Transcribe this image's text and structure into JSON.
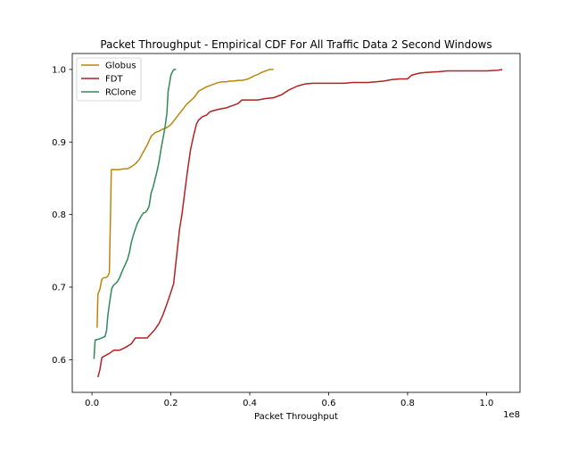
{
  "chart_data": {
    "type": "line",
    "title": "Packet Throughput - Empirical CDF For All Traffic Data 2 Second Windows",
    "xlabel": "Packet Throughput",
    "ylabel": "",
    "x_scale_label": "1e8",
    "xlim": [
      -0.05,
      1.085
    ],
    "ylim": [
      0.555,
      1.022
    ],
    "x_ticks": [
      {
        "value": 0.0,
        "label": "0.0"
      },
      {
        "value": 0.2,
        "label": "0.2"
      },
      {
        "value": 0.4,
        "label": "0.4"
      },
      {
        "value": 0.6,
        "label": "0.6"
      },
      {
        "value": 0.8,
        "label": "0.8"
      },
      {
        "value": 1.0,
        "label": "1.0"
      }
    ],
    "y_ticks": [
      {
        "value": 0.6,
        "label": "0.6"
      },
      {
        "value": 0.7,
        "label": "0.7"
      },
      {
        "value": 0.8,
        "label": "0.8"
      },
      {
        "value": 0.9,
        "label": "0.9"
      },
      {
        "value": 1.0,
        "label": "1.0"
      }
    ],
    "grid": false,
    "legend_position": "top-left",
    "series": [
      {
        "name": "Globus",
        "color": "#b8860b",
        "points": [
          [
            0.013,
            0.644
          ],
          [
            0.015,
            0.69
          ],
          [
            0.02,
            0.697
          ],
          [
            0.025,
            0.711
          ],
          [
            0.03,
            0.713
          ],
          [
            0.035,
            0.713
          ],
          [
            0.04,
            0.715
          ],
          [
            0.044,
            0.72
          ],
          [
            0.047,
            0.8
          ],
          [
            0.049,
            0.862
          ],
          [
            0.06,
            0.862
          ],
          [
            0.07,
            0.862
          ],
          [
            0.08,
            0.863
          ],
          [
            0.09,
            0.863
          ],
          [
            0.1,
            0.866
          ],
          [
            0.11,
            0.87
          ],
          [
            0.12,
            0.876
          ],
          [
            0.13,
            0.886
          ],
          [
            0.14,
            0.896
          ],
          [
            0.15,
            0.908
          ],
          [
            0.16,
            0.913
          ],
          [
            0.17,
            0.915
          ],
          [
            0.18,
            0.918
          ],
          [
            0.19,
            0.92
          ],
          [
            0.2,
            0.924
          ],
          [
            0.21,
            0.931
          ],
          [
            0.22,
            0.938
          ],
          [
            0.23,
            0.945
          ],
          [
            0.24,
            0.952
          ],
          [
            0.25,
            0.957
          ],
          [
            0.26,
            0.962
          ],
          [
            0.27,
            0.97
          ],
          [
            0.28,
            0.973
          ],
          [
            0.29,
            0.976
          ],
          [
            0.3,
            0.978
          ],
          [
            0.31,
            0.98
          ],
          [
            0.32,
            0.982
          ],
          [
            0.33,
            0.983
          ],
          [
            0.34,
            0.983
          ],
          [
            0.35,
            0.984
          ],
          [
            0.36,
            0.984
          ],
          [
            0.37,
            0.985
          ],
          [
            0.38,
            0.985
          ],
          [
            0.39,
            0.986
          ],
          [
            0.4,
            0.988
          ],
          [
            0.41,
            0.991
          ],
          [
            0.42,
            0.993
          ],
          [
            0.43,
            0.996
          ],
          [
            0.44,
            0.998
          ],
          [
            0.45,
            1.0
          ],
          [
            0.46,
            1.0
          ]
        ]
      },
      {
        "name": "FDT",
        "color": "#b22222",
        "points": [
          [
            0.015,
            0.576
          ],
          [
            0.02,
            0.586
          ],
          [
            0.025,
            0.603
          ],
          [
            0.035,
            0.606
          ],
          [
            0.045,
            0.609
          ],
          [
            0.055,
            0.613
          ],
          [
            0.07,
            0.613
          ],
          [
            0.085,
            0.617
          ],
          [
            0.1,
            0.622
          ],
          [
            0.11,
            0.63
          ],
          [
            0.12,
            0.63
          ],
          [
            0.14,
            0.63
          ],
          [
            0.15,
            0.636
          ],
          [
            0.16,
            0.642
          ],
          [
            0.17,
            0.65
          ],
          [
            0.18,
            0.662
          ],
          [
            0.19,
            0.677
          ],
          [
            0.2,
            0.693
          ],
          [
            0.207,
            0.705
          ],
          [
            0.212,
            0.73
          ],
          [
            0.217,
            0.755
          ],
          [
            0.222,
            0.78
          ],
          [
            0.228,
            0.8
          ],
          [
            0.235,
            0.83
          ],
          [
            0.242,
            0.86
          ],
          [
            0.25,
            0.89
          ],
          [
            0.258,
            0.91
          ],
          [
            0.265,
            0.925
          ],
          [
            0.27,
            0.93
          ],
          [
            0.28,
            0.935
          ],
          [
            0.29,
            0.937
          ],
          [
            0.3,
            0.942
          ],
          [
            0.32,
            0.945
          ],
          [
            0.34,
            0.947
          ],
          [
            0.355,
            0.95
          ],
          [
            0.37,
            0.953
          ],
          [
            0.38,
            0.958
          ],
          [
            0.4,
            0.958
          ],
          [
            0.42,
            0.958
          ],
          [
            0.44,
            0.96
          ],
          [
            0.46,
            0.961
          ],
          [
            0.48,
            0.965
          ],
          [
            0.5,
            0.972
          ],
          [
            0.52,
            0.977
          ],
          [
            0.54,
            0.98
          ],
          [
            0.56,
            0.981
          ],
          [
            0.6,
            0.981
          ],
          [
            0.64,
            0.981
          ],
          [
            0.66,
            0.982
          ],
          [
            0.7,
            0.982
          ],
          [
            0.72,
            0.983
          ],
          [
            0.74,
            0.984
          ],
          [
            0.76,
            0.986
          ],
          [
            0.78,
            0.987
          ],
          [
            0.8,
            0.987
          ],
          [
            0.81,
            0.992
          ],
          [
            0.83,
            0.995
          ],
          [
            0.85,
            0.996
          ],
          [
            0.88,
            0.997
          ],
          [
            0.9,
            0.998
          ],
          [
            0.95,
            0.998
          ],
          [
            1.0,
            0.998
          ],
          [
            1.03,
            0.999
          ],
          [
            1.04,
            1.0
          ]
        ]
      },
      {
        "name": "RClone",
        "color": "#2e8b57",
        "points": [
          [
            0.005,
            0.601
          ],
          [
            0.008,
            0.627
          ],
          [
            0.015,
            0.628
          ],
          [
            0.025,
            0.63
          ],
          [
            0.033,
            0.632
          ],
          [
            0.037,
            0.64
          ],
          [
            0.04,
            0.66
          ],
          [
            0.045,
            0.68
          ],
          [
            0.05,
            0.698
          ],
          [
            0.055,
            0.703
          ],
          [
            0.06,
            0.705
          ],
          [
            0.065,
            0.708
          ],
          [
            0.07,
            0.713
          ],
          [
            0.075,
            0.72
          ],
          [
            0.08,
            0.726
          ],
          [
            0.085,
            0.732
          ],
          [
            0.09,
            0.738
          ],
          [
            0.095,
            0.748
          ],
          [
            0.1,
            0.762
          ],
          [
            0.105,
            0.772
          ],
          [
            0.11,
            0.78
          ],
          [
            0.115,
            0.788
          ],
          [
            0.12,
            0.793
          ],
          [
            0.125,
            0.798
          ],
          [
            0.13,
            0.802
          ],
          [
            0.135,
            0.803
          ],
          [
            0.14,
            0.806
          ],
          [
            0.145,
            0.812
          ],
          [
            0.15,
            0.83
          ],
          [
            0.155,
            0.838
          ],
          [
            0.16,
            0.849
          ],
          [
            0.165,
            0.86
          ],
          [
            0.17,
            0.873
          ],
          [
            0.175,
            0.89
          ],
          [
            0.18,
            0.905
          ],
          [
            0.185,
            0.92
          ],
          [
            0.19,
            0.94
          ],
          [
            0.193,
            0.97
          ],
          [
            0.197,
            0.982
          ],
          [
            0.2,
            0.992
          ],
          [
            0.204,
            0.997
          ],
          [
            0.208,
            1.0
          ],
          [
            0.213,
            1.0
          ]
        ]
      }
    ]
  }
}
